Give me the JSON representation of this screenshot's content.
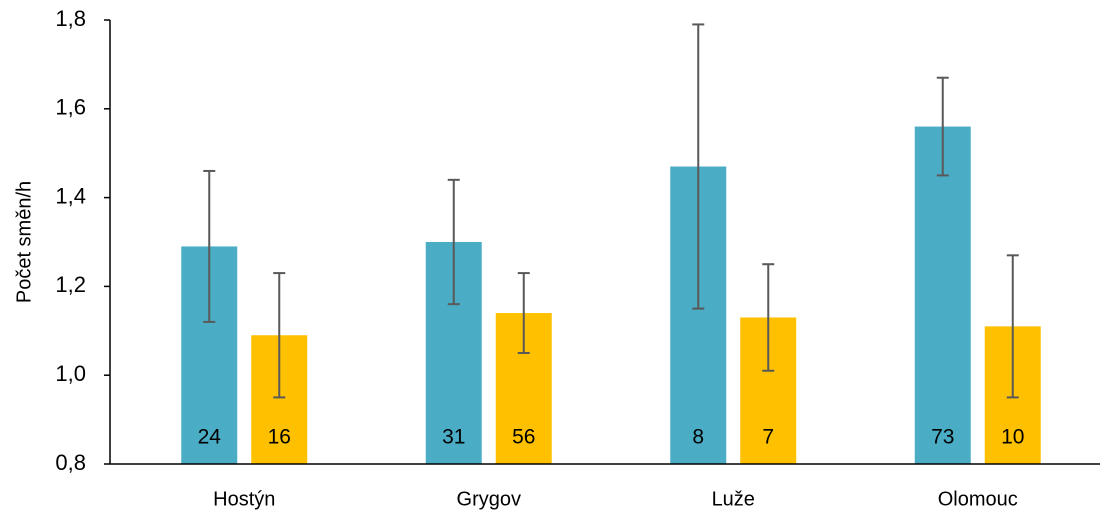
{
  "chart_data": {
    "type": "bar",
    "y_label": "Počet směn/h",
    "categories": [
      "Hostýn",
      "Grygov",
      "Luže",
      "Olomouc"
    ],
    "series": [
      {
        "color": "#4bacc6",
        "values": [
          1.29,
          1.3,
          1.47,
          1.56
        ],
        "errors": [
          0.17,
          0.14,
          0.32,
          0.11
        ],
        "sample_sizes": [
          24,
          31,
          8,
          73
        ]
      },
      {
        "color": "#ffc000",
        "values": [
          1.09,
          1.14,
          1.13,
          1.11
        ],
        "errors": [
          0.14,
          0.09,
          0.12,
          0.16
        ],
        "sample_sizes": [
          16,
          56,
          7,
          10
        ]
      }
    ],
    "error_color": "#595959",
    "ylim": [
      0.8,
      1.8
    ],
    "yticks": [
      {
        "value": 0.8,
        "label": "0,8"
      },
      {
        "value": 1.0,
        "label": "1,0"
      },
      {
        "value": 1.2,
        "label": "1,2"
      },
      {
        "value": 1.4,
        "label": "1,4"
      },
      {
        "value": 1.6,
        "label": "1,6"
      },
      {
        "value": 1.8,
        "label": "1,8"
      }
    ]
  }
}
